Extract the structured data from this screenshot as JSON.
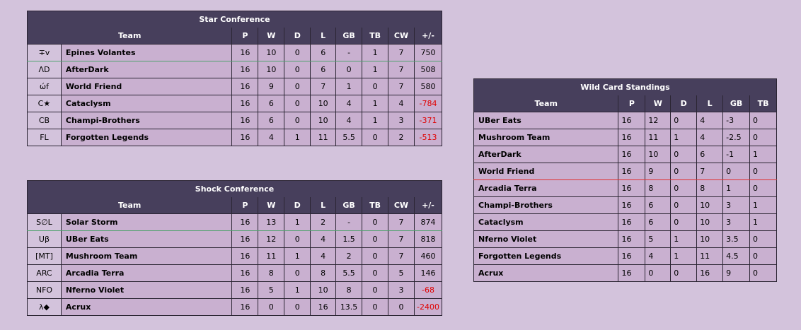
{
  "star": {
    "title": "Star Conference",
    "headers": [
      "Team",
      "P",
      "W",
      "D",
      "L",
      "GB",
      "TB",
      "CW",
      "+/-"
    ],
    "rows": [
      {
        "abbr": "∓v",
        "team": "Epines Volantes",
        "p": "16",
        "w": "10",
        "d": "0",
        "l": "6",
        "gb": "-",
        "tb": "1",
        "cw": "7",
        "pm": "750"
      },
      {
        "abbr": "ΛD",
        "team": "AfterDark",
        "p": "16",
        "w": "10",
        "d": "0",
        "l": "6",
        "gb": "0",
        "tb": "1",
        "cw": "7",
        "pm": "508"
      },
      {
        "abbr": "ώf",
        "team": "World Friend",
        "p": "16",
        "w": "9",
        "d": "0",
        "l": "7",
        "gb": "1",
        "tb": "0",
        "cw": "7",
        "pm": "580"
      },
      {
        "abbr": "C★",
        "team": "Cataclysm",
        "p": "16",
        "w": "6",
        "d": "0",
        "l": "10",
        "gb": "4",
        "tb": "1",
        "cw": "4",
        "pm": "-784"
      },
      {
        "abbr": "CB",
        "team": "Champi-Brothers",
        "p": "16",
        "w": "6",
        "d": "0",
        "l": "10",
        "gb": "4",
        "tb": "1",
        "cw": "3",
        "pm": "-371"
      },
      {
        "abbr": "FL",
        "team": "Forgotten Legends",
        "p": "16",
        "w": "4",
        "d": "1",
        "l": "11",
        "gb": "5.5",
        "tb": "0",
        "cw": "2",
        "pm": "-513"
      }
    ]
  },
  "shock": {
    "title": "Shock Conference",
    "headers": [
      "Team",
      "P",
      "W",
      "D",
      "L",
      "GB",
      "TB",
      "CW",
      "+/-"
    ],
    "rows": [
      {
        "abbr": "S∅L",
        "team": "Solar Storm",
        "p": "16",
        "w": "13",
        "d": "1",
        "l": "2",
        "gb": "-",
        "tb": "0",
        "cw": "7",
        "pm": "874"
      },
      {
        "abbr": "Uβ",
        "team": "UBer Eats",
        "p": "16",
        "w": "12",
        "d": "0",
        "l": "4",
        "gb": "1.5",
        "tb": "0",
        "cw": "7",
        "pm": "818"
      },
      {
        "abbr": "[MT]",
        "team": "Mushroom Team",
        "p": "16",
        "w": "11",
        "d": "1",
        "l": "4",
        "gb": "2",
        "tb": "0",
        "cw": "7",
        "pm": "460"
      },
      {
        "abbr": "ARC",
        "team": "Arcadia Terra",
        "p": "16",
        "w": "8",
        "d": "0",
        "l": "8",
        "gb": "5.5",
        "tb": "0",
        "cw": "5",
        "pm": "146"
      },
      {
        "abbr": "NFO",
        "team": "Nferno Violet",
        "p": "16",
        "w": "5",
        "d": "1",
        "l": "10",
        "gb": "8",
        "tb": "0",
        "cw": "3",
        "pm": "-68"
      },
      {
        "abbr": "λ◆",
        "team": "Acrux",
        "p": "16",
        "w": "0",
        "d": "0",
        "l": "16",
        "gb": "13.5",
        "tb": "0",
        "cw": "0",
        "pm": "-2400"
      }
    ]
  },
  "wildcard": {
    "title": "Wild Card Standings",
    "headers": [
      "Team",
      "P",
      "W",
      "D",
      "L",
      "GB",
      "TB"
    ],
    "rows": [
      {
        "team": "UBer Eats",
        "p": "16",
        "w": "12",
        "d": "0",
        "l": "4",
        "gb": "-3",
        "tb": "0"
      },
      {
        "team": "Mushroom Team",
        "p": "16",
        "w": "11",
        "d": "1",
        "l": "4",
        "gb": "-2.5",
        "tb": "0"
      },
      {
        "team": "AfterDark",
        "p": "16",
        "w": "10",
        "d": "0",
        "l": "6",
        "gb": "-1",
        "tb": "1"
      },
      {
        "team": "World Friend",
        "p": "16",
        "w": "9",
        "d": "0",
        "l": "7",
        "gb": "0",
        "tb": "0"
      },
      {
        "team": "Arcadia Terra",
        "p": "16",
        "w": "8",
        "d": "0",
        "l": "8",
        "gb": "1",
        "tb": "0"
      },
      {
        "team": "Champi-Brothers",
        "p": "16",
        "w": "6",
        "d": "0",
        "l": "10",
        "gb": "3",
        "tb": "1"
      },
      {
        "team": "Cataclysm",
        "p": "16",
        "w": "6",
        "d": "0",
        "l": "10",
        "gb": "3",
        "tb": "1"
      },
      {
        "team": "Nferno Violet",
        "p": "16",
        "w": "5",
        "d": "1",
        "l": "10",
        "gb": "3.5",
        "tb": "0"
      },
      {
        "team": "Forgotten Legends",
        "p": "16",
        "w": "4",
        "d": "1",
        "l": "11",
        "gb": "4.5",
        "tb": "0"
      },
      {
        "team": "Acrux",
        "p": "16",
        "w": "0",
        "d": "0",
        "l": "16",
        "gb": "9",
        "tb": "0"
      }
    ]
  },
  "colors": {
    "page_background": "#d3c3dc",
    "header_background": "#473f5c",
    "cell_background": "#c9b0d0",
    "negative": "#e00000",
    "playoff_line": "#4fa26e",
    "wildcard_line": "#e03030"
  }
}
